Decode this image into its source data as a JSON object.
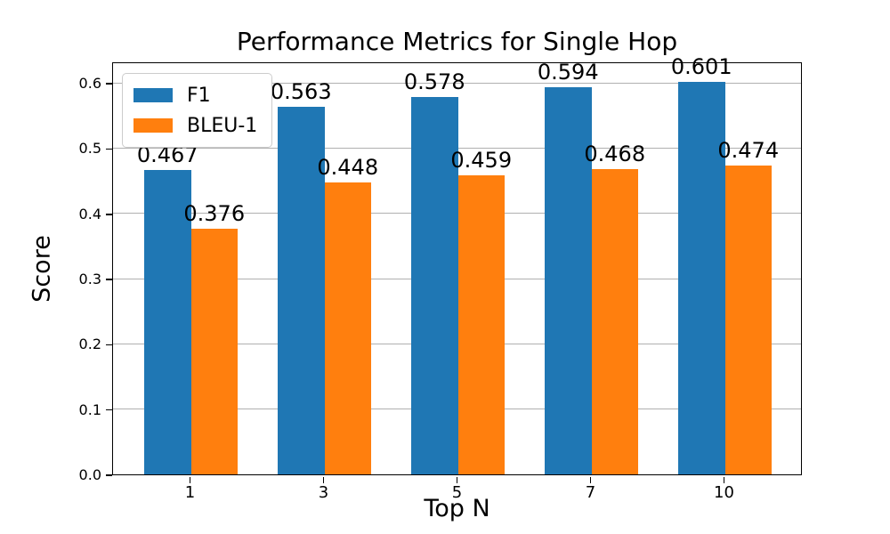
{
  "chart_data": {
    "type": "bar",
    "title": "Performance Metrics for Single Hop",
    "xlabel": "Top N",
    "ylabel": "Score",
    "categories": [
      "1",
      "3",
      "5",
      "7",
      "10"
    ],
    "series": [
      {
        "name": "F1",
        "color": "#1f77b4",
        "values": [
          0.467,
          0.563,
          0.578,
          0.594,
          0.601
        ],
        "labels": [
          "0.467",
          "0.563",
          "0.578",
          "0.594",
          "0.601"
        ]
      },
      {
        "name": "BLEU-1",
        "color": "#ff7f0e",
        "values": [
          0.376,
          0.448,
          0.459,
          0.468,
          0.474
        ],
        "labels": [
          "0.376",
          "0.448",
          "0.459",
          "0.468",
          "0.474"
        ]
      }
    ],
    "yticks": [
      "0.0",
      "0.1",
      "0.2",
      "0.3",
      "0.4",
      "0.5",
      "0.6"
    ],
    "ylim": [
      0,
      0.633
    ],
    "grid": true,
    "gridline_color": "#b0b0b0",
    "legend_position": "upper left",
    "background": "#ffffff"
  }
}
